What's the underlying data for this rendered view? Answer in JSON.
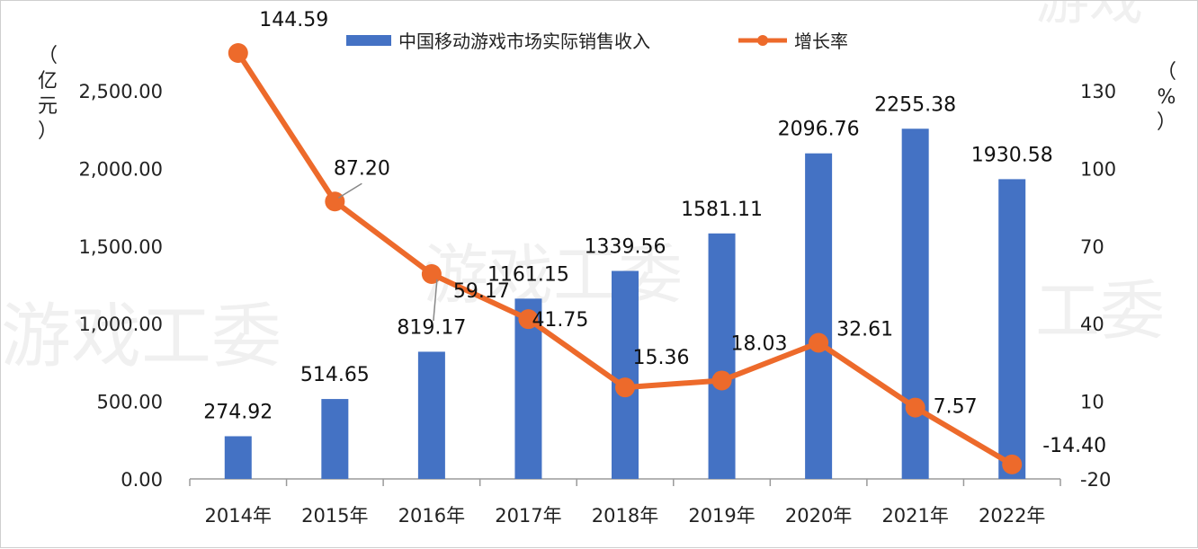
{
  "chart_data": {
    "type": "bar",
    "categories": [
      "2014年",
      "2015年",
      "2016年",
      "2017年",
      "2018年",
      "2019年",
      "2020年",
      "2021年",
      "2022年"
    ],
    "series": [
      {
        "name": "中国移动游戏市场实际销售收入",
        "type": "bar",
        "axis": "left",
        "color": "#4472C4",
        "values": [
          274.92,
          514.65,
          819.17,
          1161.15,
          1339.56,
          1581.11,
          2096.76,
          2255.38,
          1930.58
        ],
        "labels": [
          "274.92",
          "514.65",
          "819.17",
          "1161.15",
          "1339.56",
          "1581.11",
          "2096.76",
          "2255.38",
          "1930.58"
        ]
      },
      {
        "name": "增长率",
        "type": "line",
        "axis": "right",
        "color": "#ED6A2B",
        "values": [
          144.59,
          87.2,
          59.17,
          41.75,
          15.36,
          18.03,
          32.61,
          7.57,
          -14.4
        ],
        "labels": [
          "144.59",
          "87.20",
          "59.17",
          "41.75",
          "15.36",
          "18.03",
          "32.61",
          "7.57",
          "-14.40"
        ]
      }
    ],
    "y_left": {
      "unit_chars": [
        "（",
        "亿",
        "元",
        "）"
      ],
      "ylim": [
        0,
        2500
      ],
      "ticks": [
        "0.00",
        "500.00",
        "1,000.00",
        "1,500.00",
        "2,000.00",
        "2,500.00"
      ],
      "tick_values": [
        0,
        500,
        1000,
        1500,
        2000,
        2500
      ]
    },
    "y_right": {
      "unit_chars": [
        "（",
        "%",
        "）"
      ],
      "ylim": [
        -20,
        130
      ],
      "ticks": [
        "-20",
        "10",
        "40",
        "70",
        "100",
        "130"
      ],
      "tick_values": [
        -20,
        10,
        40,
        70,
        100,
        130
      ]
    },
    "legend": {
      "position": "top-center"
    },
    "grid": false,
    "watermark": [
      "游戏工委",
      "游戏工委",
      "工委",
      "游戏"
    ]
  }
}
